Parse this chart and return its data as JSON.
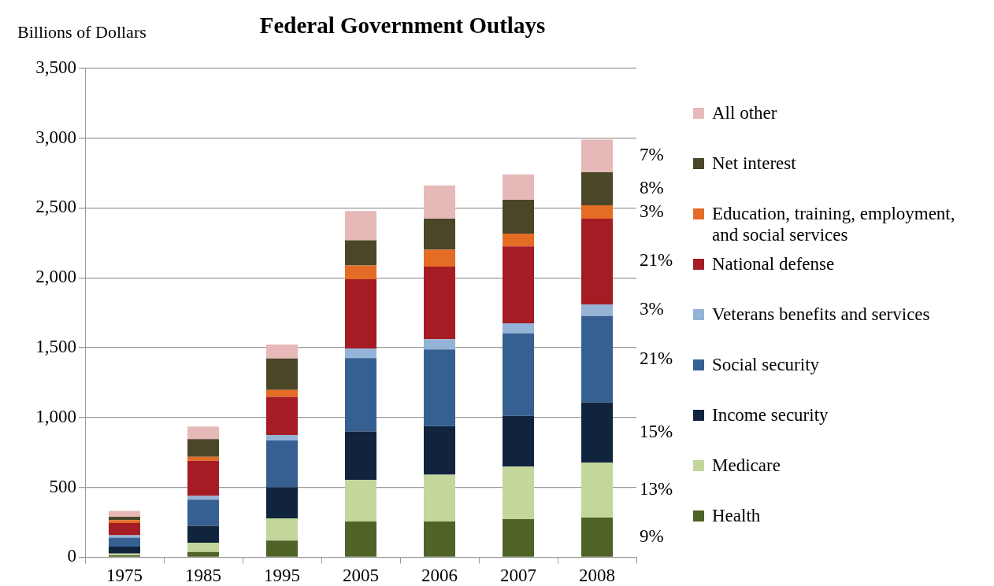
{
  "chart_data": {
    "type": "bar",
    "title": "Federal Government Outlays",
    "ylabel": "Billions of Dollars",
    "categories": [
      "1975",
      "1985",
      "1995",
      "2005",
      "2006",
      "2007",
      "2008"
    ],
    "stacked": true,
    "ylim": [
      0,
      3500
    ],
    "yticks": [
      {
        "value": 0,
        "label": "0"
      },
      {
        "value": 500,
        "label": "500"
      },
      {
        "value": 1000,
        "label": "1,000"
      },
      {
        "value": 1500,
        "label": "1,500"
      },
      {
        "value": 2000,
        "label": "2,000"
      },
      {
        "value": 2500,
        "label": "2,500"
      },
      {
        "value": 3000,
        "label": "3,000"
      },
      {
        "value": 3500,
        "label": "3,500"
      }
    ],
    "grid": "y",
    "legend": "right",
    "series": [
      {
        "name": "Health",
        "color": "#4f6228",
        "values": [
          13,
          38,
          119,
          255,
          255,
          272,
          284
        ]
      },
      {
        "name": "Medicare",
        "color": "#c3d69b",
        "values": [
          13,
          66,
          159,
          299,
          335,
          376,
          393
        ]
      },
      {
        "name": "Income security",
        "color": "#10243e",
        "values": [
          50,
          121,
          223,
          346,
          348,
          364,
          431
        ]
      },
      {
        "name": "Social security",
        "color": "#376092",
        "values": [
          64,
          187,
          335,
          526,
          550,
          589,
          618
        ]
      },
      {
        "name": "Veterans benefits and services",
        "color": "#95b3d7",
        "values": [
          17,
          27,
          39,
          68,
          72,
          73,
          84
        ]
      },
      {
        "name": "National defense",
        "color": "#a51c24",
        "values": [
          87,
          251,
          273,
          496,
          520,
          551,
          614
        ]
      },
      {
        "name": "Education, training, employment, and social services",
        "color": "#e46c25",
        "values": [
          22,
          29,
          49,
          98,
          121,
          91,
          95
        ]
      },
      {
        "name": "Net interest",
        "color": "#4a4628",
        "values": [
          23,
          126,
          225,
          181,
          223,
          243,
          237
        ]
      },
      {
        "name": "All other",
        "color": "#e6b9b8",
        "values": [
          43,
          91,
          100,
          210,
          237,
          181,
          234
        ]
      }
    ],
    "annotations": [
      "9%",
      "13%",
      "15%",
      "21%",
      "3%",
      "21%",
      "3%",
      "8%",
      "7%"
    ]
  }
}
